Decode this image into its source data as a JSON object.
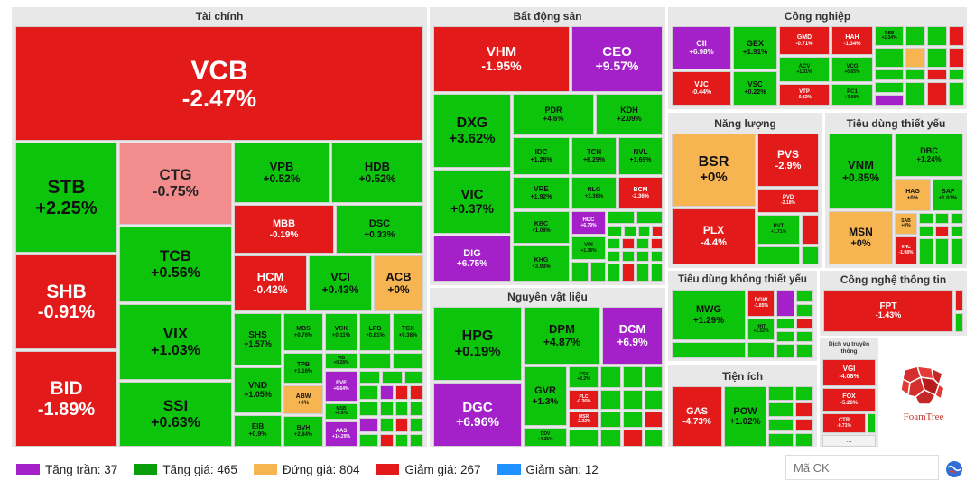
{
  "sectors": {
    "tai_chinh": "Tài chính",
    "bat_dong_san": "Bất động sản",
    "cong_nghiep": "Công nghiệp",
    "nang_luong": "Năng lượng",
    "tieu_dung_thiet_yeu": "Tiêu dùng thiết yếu",
    "nguyen_vat_lieu": "Nguyên vật liệu",
    "tieu_dung_khong_thiet_yeu": "Tiêu dùng không thiết yếu",
    "cong_nghe_thong_tin": "Công nghệ thông tin",
    "tien_ich": "Tiện ích",
    "dich_vu_truyen_thong": "Dịch vụ truyền thông"
  },
  "stocks": {
    "VCB": {
      "t": "VCB",
      "c": "-2.47%"
    },
    "STB": {
      "t": "STB",
      "c": "+2.25%"
    },
    "CTG": {
      "t": "CTG",
      "c": "-0.75%"
    },
    "VPB": {
      "t": "VPB",
      "c": "+0.52%"
    },
    "HDB": {
      "t": "HDB",
      "c": "+0.52%"
    },
    "MBB": {
      "t": "MBB",
      "c": "-0.19%"
    },
    "DSC": {
      "t": "DSC",
      "c": "+0.33%"
    },
    "SHB": {
      "t": "SHB",
      "c": "-0.91%"
    },
    "TCB": {
      "t": "TCB",
      "c": "+0.56%"
    },
    "HCM": {
      "t": "HCM",
      "c": "-0.42%"
    },
    "VCI": {
      "t": "VCI",
      "c": "+0.43%"
    },
    "ACB": {
      "t": "ACB",
      "c": "+0%"
    },
    "VIX": {
      "t": "VIX",
      "c": "+1.03%"
    },
    "SHS": {
      "t": "SHS",
      "c": "+1.57%"
    },
    "MBS": {
      "t": "MBS",
      "c": "+0.76%"
    },
    "VCK": {
      "t": "VCK",
      "c": "+0.11%"
    },
    "LPB": {
      "t": "LPB",
      "c": "+0.81%"
    },
    "TCX": {
      "t": "TCX",
      "c": "+0.38%"
    },
    "BID": {
      "t": "BID",
      "c": "-1.89%"
    },
    "TPB": {
      "t": "TPB",
      "c": "+1.16%"
    },
    "VND": {
      "t": "VND",
      "c": "+1.05%"
    },
    "SSI": {
      "t": "SSI",
      "c": "+0.63%"
    },
    "ABW": {
      "t": "ABW",
      "c": "+0%"
    },
    "EVF": {
      "t": "EVF",
      "c": "+6.64%"
    },
    "EIB": {
      "t": "EIB",
      "c": "+0.9%"
    },
    "BVH": {
      "t": "BVH",
      "c": "+2.84%"
    },
    "MSB": {
      "t": "MSB",
      "c": "+0.9%"
    },
    "AAS": {
      "t": "AAS",
      "c": "+14.29%"
    },
    "VIB": {
      "t": "VIB",
      "c": "+0.28%"
    },
    "VHM": {
      "t": "VHM",
      "c": "-1.95%"
    },
    "CEO": {
      "t": "CEO",
      "c": "+9.57%"
    },
    "DXG": {
      "t": "DXG",
      "c": "+3.62%"
    },
    "PDR": {
      "t": "PDR",
      "c": "+4.6%"
    },
    "KDH": {
      "t": "KDH",
      "c": "+2.09%"
    },
    "IDC": {
      "t": "IDC",
      "c": "+1.28%"
    },
    "TCH": {
      "t": "TCH",
      "c": "+6.29%"
    },
    "NVL": {
      "t": "NVL",
      "c": "+1.69%"
    },
    "VIC": {
      "t": "VIC",
      "c": "+0.37%"
    },
    "VRE": {
      "t": "VRE",
      "c": "+1.92%"
    },
    "NLG": {
      "t": "NLG",
      "c": "+3.36%"
    },
    "BCM": {
      "t": "BCM",
      "c": "-2.36%"
    },
    "KBC": {
      "t": "KBC",
      "c": "+1.08%"
    },
    "HDC": {
      "t": "HDC",
      "c": "+6.79%"
    },
    "DIG": {
      "t": "DIG",
      "c": "+6.75%"
    },
    "KHG": {
      "t": "KHG",
      "c": "+3.93%"
    },
    "VPI": {
      "t": "VPI",
      "c": "+1.38%"
    },
    "HPG": {
      "t": "HPG",
      "c": "+0.19%"
    },
    "DPM": {
      "t": "DPM",
      "c": "+4.87%"
    },
    "DCM": {
      "t": "DCM",
      "c": "+6.9%"
    },
    "GVR": {
      "t": "GVR",
      "c": "+1.3%"
    },
    "CSV": {
      "t": "CSV",
      "c": "+2.2%"
    },
    "PLC": {
      "t": "PLC",
      "c": "-0.36%"
    },
    "MSR": {
      "t": "MSR",
      "c": "-2.22%"
    },
    "DGC": {
      "t": "DGC",
      "c": "+6.96%"
    },
    "DDV": {
      "t": "DDV",
      "c": "+4.35%"
    },
    "CII": {
      "t": "CII",
      "c": "+6.98%"
    },
    "GEX": {
      "t": "GEX",
      "c": "+1.91%"
    },
    "GMD": {
      "t": "GMD",
      "c": "-0.71%"
    },
    "HAH": {
      "t": "HAH",
      "c": "-1.34%"
    },
    "GEE": {
      "t": "GEE",
      "c": "+1.34%"
    },
    "VJC": {
      "t": "VJC",
      "c": "-0.44%"
    },
    "VSC": {
      "t": "VSC",
      "c": "+0.22%"
    },
    "ACV": {
      "t": "ACV",
      "c": "+1.31%"
    },
    "VCG": {
      "t": "VCG",
      "c": "+0.65%"
    },
    "VTP": {
      "t": "VTP",
      "c": "-0.82%"
    },
    "PC1": {
      "t": "PC1",
      "c": "+3.08%"
    },
    "BSR": {
      "t": "BSR",
      "c": "+0%"
    },
    "PVS": {
      "t": "PVS",
      "c": "-2.9%"
    },
    "PVD": {
      "t": "PVD",
      "c": "-2.18%"
    },
    "PLX": {
      "t": "PLX",
      "c": "-4.4%"
    },
    "PVT": {
      "t": "PVT",
      "c": "+1.71%"
    },
    "VNM": {
      "t": "VNM",
      "c": "+0.85%"
    },
    "DBC": {
      "t": "DBC",
      "c": "+1.24%"
    },
    "HAG": {
      "t": "HAG",
      "c": "+0%"
    },
    "BAF": {
      "t": "BAF",
      "c": "+1.03%"
    },
    "MSN": {
      "t": "MSN",
      "c": "+0%"
    },
    "SAB": {
      "t": "SAB",
      "c": "+0%"
    },
    "VHC": {
      "t": "VHC",
      "c": "-1.98%"
    },
    "MWG": {
      "t": "MWG",
      "c": "+1.29%"
    },
    "DGW": {
      "t": "DGW",
      "c": "-1.85%"
    },
    "HHT": {
      "t": "HHT",
      "c": "+1.52%"
    },
    "FPT": {
      "t": "FPT",
      "c": "-1.43%"
    },
    "VGI": {
      "t": "VGI",
      "c": "-4.08%"
    },
    "FOX": {
      "t": "FOX",
      "c": "-5.26%"
    },
    "CTR": {
      "t": "CTR",
      "c": "-0.71%"
    },
    "GAS": {
      "t": "GAS",
      "c": "-4.73%"
    },
    "POW": {
      "t": "POW",
      "c": "+1.02%"
    }
  },
  "more": "...",
  "legend": [
    {
      "label": "Tăng trần: 37",
      "color": "#a421c9"
    },
    {
      "label": "Tăng giá: 465",
      "color": "#0cc40c"
    },
    {
      "label": "Đứng giá: 804",
      "color": "#f6b550"
    },
    {
      "label": "Giảm giá: 267",
      "color": "#e31a1a"
    },
    {
      "label": "Giảm sàn: 12",
      "color": "#1e90ff"
    }
  ],
  "search": {
    "placeholder": "Mã CK"
  },
  "logo": {
    "label": "FoamTree"
  }
}
